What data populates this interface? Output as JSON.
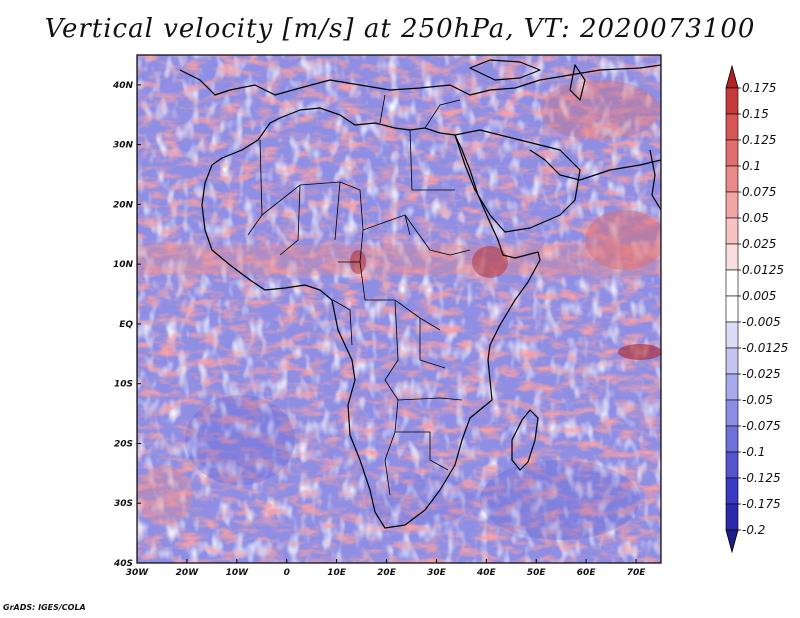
{
  "title": "Vertical velocity [m/s] at 250hPa, VT: 2020073100",
  "credit": "GrADS: IGES/COLA",
  "chart_data": {
    "type": "heatmap",
    "title": "Vertical velocity [m/s] at 250hPa, VT: 2020073100",
    "variable": "Vertical velocity",
    "units": "m/s",
    "level": "250hPa",
    "valid_time": "2020073100",
    "lon_range": [
      -30,
      75
    ],
    "lat_range": [
      -40,
      45
    ],
    "x_ticks": [
      "30W",
      "20W",
      "10W",
      "0",
      "10E",
      "20E",
      "30E",
      "40E",
      "50E",
      "60E",
      "70E"
    ],
    "y_ticks": [
      "40S",
      "30S",
      "20S",
      "10S",
      "EQ",
      "10N",
      "20N",
      "30N",
      "40N"
    ],
    "colorbar": {
      "levels": [
        "0.175",
        "0.15",
        "0.125",
        "0.1",
        "0.075",
        "0.05",
        "0.025",
        "0.0125",
        "0.005",
        "-0.005",
        "-0.0125",
        "-0.025",
        "-0.05",
        "-0.075",
        "-0.1",
        "-0.125",
        "-0.175",
        "-0.2"
      ],
      "colors": [
        "#b22222",
        "#c63a3a",
        "#d65555",
        "#e06e6e",
        "#ea8a8a",
        "#f1a5a5",
        "#f6c2c2",
        "#fadddd",
        "#ffffff",
        "#ffffff",
        "#dcdcf8",
        "#c4c4f2",
        "#a8a8ec",
        "#8c8ce4",
        "#7070da",
        "#5454cf",
        "#3a3ac2",
        "#2a2aa8",
        "#1c1c8a"
      ]
    }
  }
}
